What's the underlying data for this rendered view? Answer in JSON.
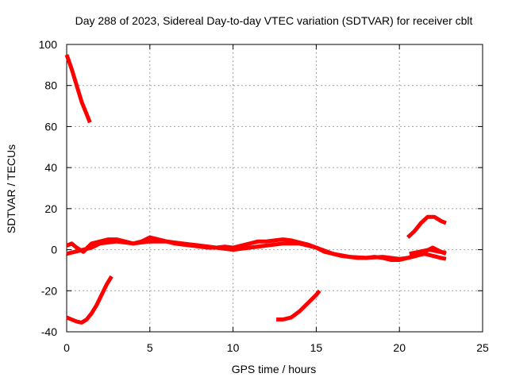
{
  "chart_data": {
    "type": "line",
    "title": "Day 288 of 2023, Sidereal Day-to-day VTEC variation (SDTVAR) for receiver cblt",
    "xlabel": "GPS time / hours",
    "ylabel": "SDTVAR / TECUs",
    "xlim": [
      0,
      25
    ],
    "ylim": [
      -40,
      100
    ],
    "xticks": [
      0,
      5,
      10,
      15,
      20,
      25
    ],
    "yticks": [
      -40,
      -20,
      0,
      20,
      40,
      60,
      80,
      100
    ],
    "grid": true,
    "series_color": "#ff0000",
    "series": [
      {
        "name": "arc-1",
        "x": [
          0.0,
          0.3,
          0.6,
          0.9,
          1.2,
          1.4
        ],
        "y": [
          95,
          88,
          80,
          72,
          66,
          62
        ]
      },
      {
        "name": "arc-2",
        "x": [
          0.0,
          0.3,
          0.6,
          0.9,
          1.2,
          1.5,
          1.8,
          2.1,
          2.4,
          2.7
        ],
        "y": [
          -33,
          -34,
          -35,
          -35.5,
          -34,
          -31,
          -27,
          -22,
          -17,
          -13
        ]
      },
      {
        "name": "arc-3",
        "x": [
          0.0,
          0.3,
          0.6,
          1.0,
          1.5,
          2.0,
          2.5,
          3.0,
          3.5,
          4.0,
          4.5,
          5.0,
          5.5,
          6.0,
          6.5,
          7.0,
          7.5,
          8.0,
          8.5,
          9.0,
          9.5,
          10.0,
          10.5,
          11.0,
          11.5,
          12.0,
          12.5,
          13.0,
          13.5,
          14.0,
          14.5,
          15.0,
          15.5,
          16.0,
          16.5,
          17.0,
          17.5,
          18.0,
          18.5,
          19.0,
          19.5,
          20.0,
          20.5,
          21.0,
          21.5,
          22.0,
          22.5,
          22.8
        ],
        "y": [
          2,
          3,
          1,
          -1,
          3,
          4,
          5,
          5,
          4,
          3,
          4,
          6,
          5,
          4,
          3,
          2.5,
          2,
          1.5,
          1,
          1,
          1.5,
          1,
          2,
          3,
          4,
          4,
          4.5,
          5,
          4.5,
          3.5,
          2.5,
          1,
          -1,
          -2,
          -3,
          -3.5,
          -4,
          -4,
          -3.5,
          -4,
          -5,
          -5,
          -4,
          -3,
          -1,
          1,
          -1,
          -2
        ]
      },
      {
        "name": "arc-4",
        "x": [
          0.0,
          0.5,
          1.0,
          1.5,
          2.0,
          3.0,
          4.0,
          5.0,
          6.0,
          7.0,
          8.0,
          9.0,
          10.0,
          11.0,
          12.0,
          13.0,
          14.0,
          15.0,
          16.0,
          17.0,
          18.0,
          19.0,
          20.0,
          20.5,
          21.0,
          21.5,
          22.0,
          22.5,
          22.8
        ],
        "y": [
          -2,
          -1,
          0,
          1,
          3,
          4,
          3,
          4,
          4,
          3,
          2,
          1,
          0,
          1,
          2,
          3,
          3,
          1,
          -2,
          -3.5,
          -4,
          -3.5,
          -4.5,
          -4,
          -3,
          -2,
          -3,
          -4,
          -4.5
        ]
      },
      {
        "name": "arc-5",
        "x": [
          12.6,
          13.0,
          13.5,
          14.0,
          14.5,
          15.0,
          15.2
        ],
        "y": [
          -34,
          -34,
          -33,
          -30,
          -26,
          -22,
          -20
        ]
      },
      {
        "name": "arc-6",
        "x": [
          20.5,
          20.9,
          21.3,
          21.7,
          22.1,
          22.5,
          22.8
        ],
        "y": [
          6,
          9,
          13,
          16,
          16,
          14,
          13
        ]
      },
      {
        "name": "arc-7",
        "x": [
          20.6,
          21.2,
          21.8,
          22.4,
          22.8
        ],
        "y": [
          -2,
          -1,
          0,
          -1,
          -1.5
        ]
      }
    ]
  }
}
